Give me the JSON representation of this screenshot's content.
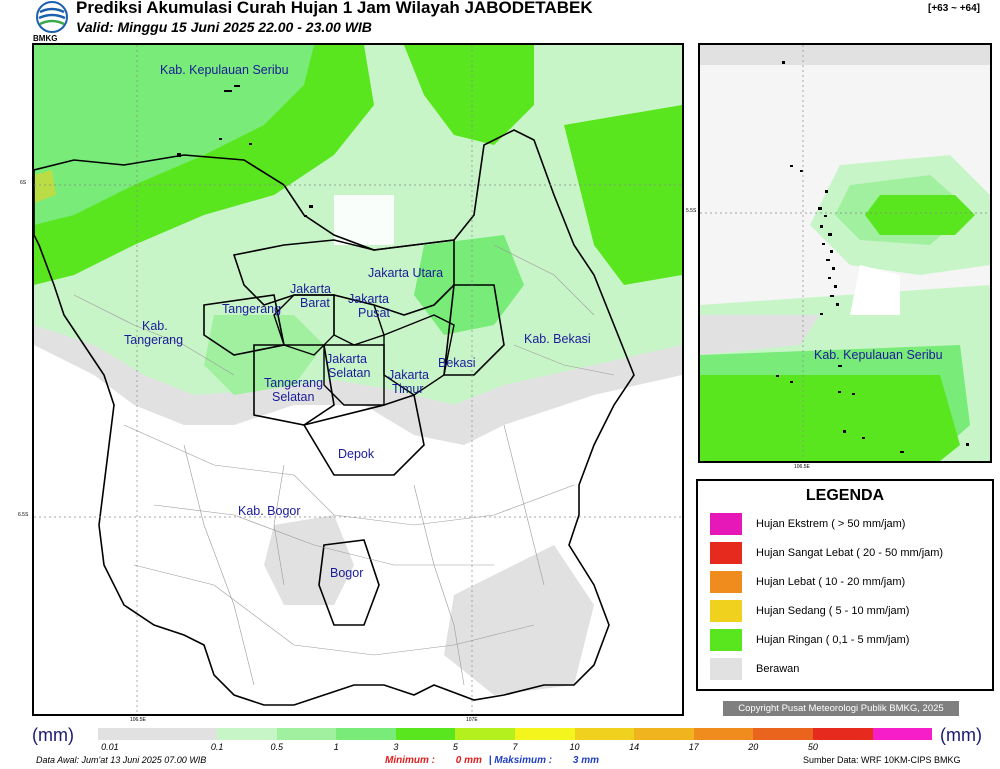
{
  "header": {
    "title": "Prediksi Akumulasi Curah Hujan 1 Jam Wilayah JABODETABEK",
    "valid": "Valid: Minggu 15 Juni 2025 22.00 - 23.00 WIB",
    "range": "[+63 ~ +64]",
    "logo_text": "BMKG"
  },
  "map": {
    "regions": [
      "Kab. Kepulauan Seribu",
      "Jakarta Utara",
      "Jakarta",
      "Barat",
      "Jakarta",
      "Pusat",
      "Tangerang",
      "Kab.",
      "Tangerang",
      "Jakarta",
      "Selatan",
      "Jakarta",
      "Timur",
      "Bekasi",
      "Kab. Bekasi",
      "Tangerang",
      "Selatan",
      "Depok",
      "Kab. Bogor",
      "Bogor"
    ],
    "coords": {
      "lat_top": "6S",
      "lat_bottom": "6.5S",
      "lon_left": "106.5E",
      "lon_right": "107E"
    }
  },
  "inset": {
    "region": "Kab. Kepulauan Seribu",
    "lat": "5.5S",
    "lon": "106.5E"
  },
  "legend": {
    "title": "LEGENDA",
    "items": [
      {
        "label": "Hujan Ekstrem ( > 50 mm/jam)",
        "color": "#e619b8"
      },
      {
        "label": "Hujan Sangat Lebat ( 20 - 50 mm/jam)",
        "color": "#e62a1e"
      },
      {
        "label": "Hujan Lebat ( 10 - 20 mm/jam)",
        "color": "#f08c1e"
      },
      {
        "label": "Hujan Sedang ( 5 - 10 mm/jam)",
        "color": "#f0d21e"
      },
      {
        "label": "Hujan Ringan ( 0,1 - 5 mm/jam)",
        "color": "#5ae61e"
      },
      {
        "label": "Berawan",
        "color": "#e1e1e1"
      }
    ]
  },
  "copyright": "Copyright Pusat Meteorologi Publik BMKG, 2025",
  "colorbar": {
    "unit": "(mm)",
    "colors": [
      "#e1e1e1",
      "#e1e1e1",
      "#c8f5c8",
      "#a0f0a0",
      "#78eb78",
      "#5ae61e",
      "#b4f01e",
      "#f5f51e",
      "#f0d21e",
      "#f0b41e",
      "#f08c1e",
      "#eb641e",
      "#e62a1e",
      "#f51ec8"
    ],
    "ticks": [
      "0.01",
      "0.1",
      "0.5",
      "1",
      "3",
      "5",
      "7",
      "10",
      "14",
      "17",
      "20",
      "50"
    ]
  },
  "footer": {
    "left": "Data Awal: Jum'at 13 Juni 2025 07.00 WIB",
    "min_label": "Minimum :",
    "min_value": "0 mm",
    "separator": "|",
    "max_label": "Maksimum :",
    "max_value": "3 mm",
    "right": "Sumber Data: WRF 10KM-CIPS BMKG"
  }
}
